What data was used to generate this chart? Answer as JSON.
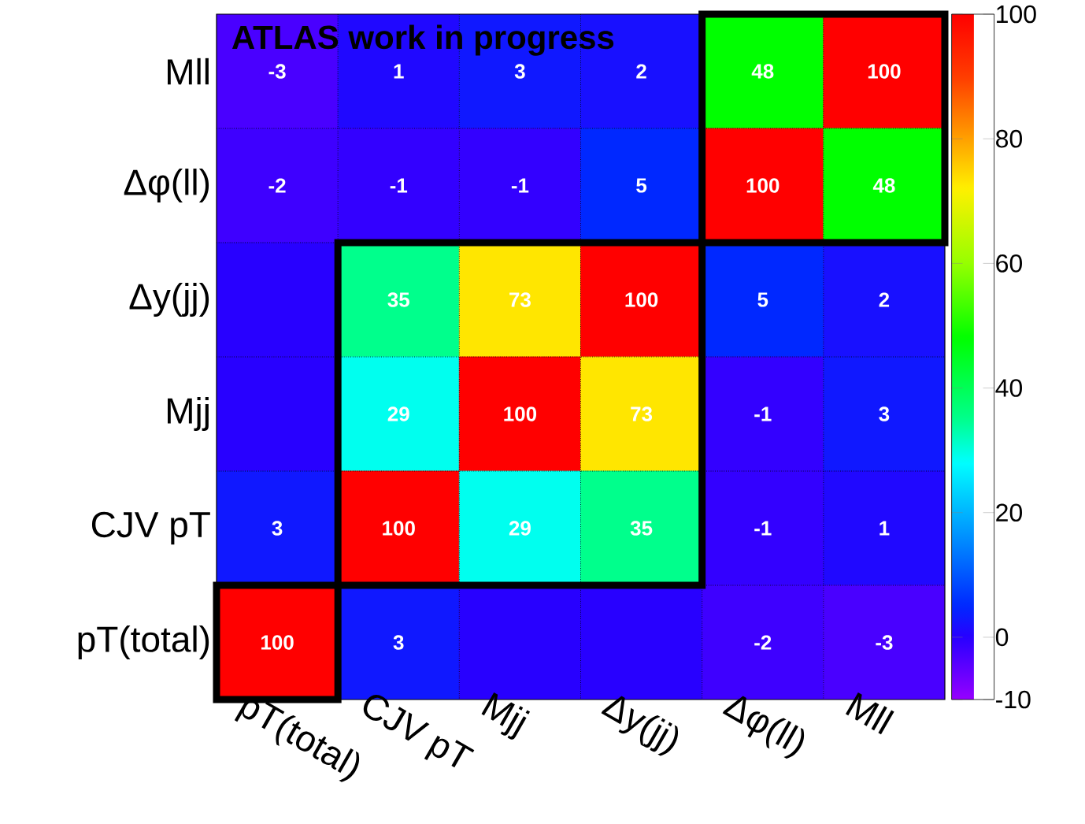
{
  "chart_data": {
    "type": "heatmap",
    "title": "ATLAS work in progress",
    "categories": [
      "pT(total)",
      "CJV pT",
      "Mjj",
      "Δy(jj)",
      "Δφ(ll)",
      "Mll"
    ],
    "y_categories": [
      "Mll",
      "Δφ(ll)",
      "Δy(jj)",
      "Mjj",
      "CJV pT",
      "pT(total)"
    ],
    "cells": [
      [
        -3,
        1,
        3,
        2,
        48,
        100
      ],
      [
        -2,
        -1,
        -1,
        5,
        100,
        48
      ],
      [
        0,
        35,
        73,
        100,
        5,
        2
      ],
      [
        0,
        29,
        100,
        73,
        -1,
        3
      ],
      [
        3,
        100,
        29,
        35,
        -1,
        1
      ],
      [
        100,
        3,
        0,
        0,
        -2,
        -3
      ]
    ],
    "cell_labels": [
      [
        "-3",
        "1",
        "3",
        "2",
        "48",
        "100"
      ],
      [
        "-2",
        "-1",
        "-1",
        "5",
        "100",
        "48"
      ],
      [
        null,
        "35",
        "73",
        "100",
        "5",
        "2"
      ],
      [
        null,
        "29",
        "100",
        "73",
        "-1",
        "3"
      ],
      [
        "3",
        "100",
        "29",
        "35",
        "-1",
        "1"
      ],
      [
        "100",
        "3",
        null,
        null,
        "-2",
        "-3"
      ]
    ],
    "clim": [
      -10,
      100
    ],
    "cticks": [
      -10,
      0,
      20,
      40,
      60,
      80,
      100
    ],
    "grid": true
  }
}
